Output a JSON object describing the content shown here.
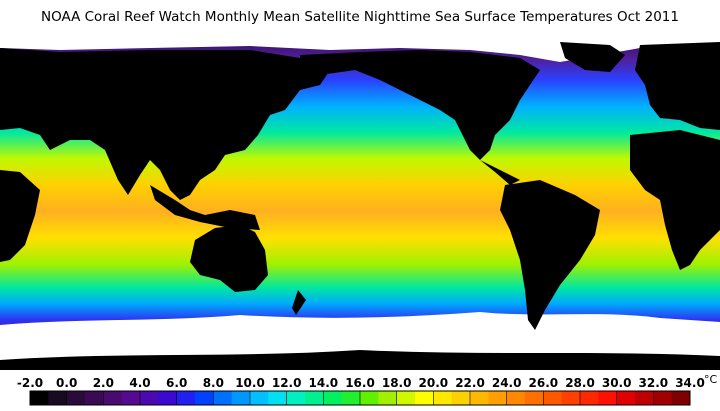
{
  "title": "NOAA Coral Reef Watch Monthly Mean Satellite Nighttime Sea Surface Temperatures    Oct 2011",
  "colorbar": {
    "ticks": [
      {
        "value": -2,
        "label": "-2.0"
      },
      {
        "value": 0,
        "label": "0.0"
      },
      {
        "value": 2,
        "label": "2.0"
      },
      {
        "value": 4,
        "label": "4.0"
      },
      {
        "value": 6,
        "label": "6.0"
      },
      {
        "value": 8,
        "label": "8.0"
      },
      {
        "value": 10,
        "label": "10.0"
      },
      {
        "value": 12,
        "label": "12.0"
      },
      {
        "value": 14,
        "label": "14.0"
      },
      {
        "value": 16,
        "label": "16.0"
      },
      {
        "value": 18,
        "label": "18.0"
      },
      {
        "value": 20,
        "label": "20.0"
      },
      {
        "value": 22,
        "label": "22.0"
      },
      {
        "value": 24,
        "label": "24.0"
      },
      {
        "value": 26,
        "label": "26.0"
      },
      {
        "value": 28,
        "label": "28.0"
      },
      {
        "value": 30,
        "label": "30.0"
      },
      {
        "value": 32,
        "label": "32.0"
      },
      {
        "value": 34,
        "label": "34.0"
      }
    ],
    "unit": "°C",
    "colors": [
      "#000000",
      "#1a0a20",
      "#2a0a3a",
      "#3a0a55",
      "#4a0a70",
      "#550a90",
      "#4a0ab0",
      "#3a0ad0",
      "#2020f0",
      "#0040ff",
      "#0070ff",
      "#0098ff",
      "#00c0ff",
      "#00e0f0",
      "#00f0c0",
      "#00f090",
      "#00f060",
      "#20f030",
      "#60f000",
      "#a0f000",
      "#d0f800",
      "#ffff00",
      "#ffe800",
      "#ffd000",
      "#ffb800",
      "#ffa000",
      "#ff8800",
      "#ff7000",
      "#ff5800",
      "#ff4000",
      "#ff2800",
      "#ff1000",
      "#e00000",
      "#c00000",
      "#a00000",
      "#800000"
    ]
  }
}
